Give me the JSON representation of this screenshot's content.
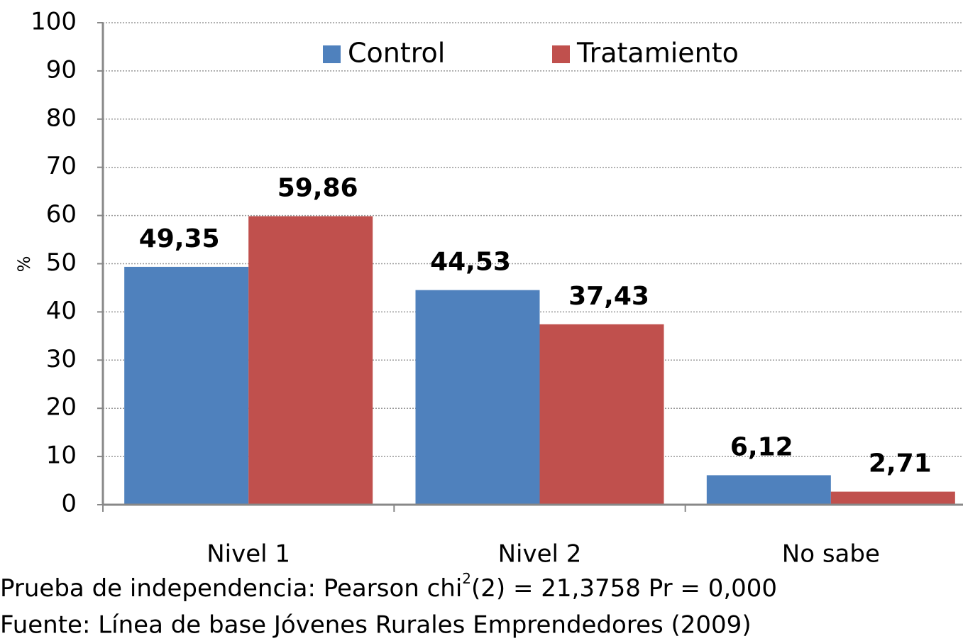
{
  "chart_data": {
    "type": "bar",
    "categories": [
      "Nivel 1",
      "Nivel 2",
      "No sabe"
    ],
    "series": [
      {
        "name": "Control",
        "color": "#4f81bd",
        "values": [
          49.35,
          44.53,
          6.12
        ],
        "value_labels": [
          "49,35",
          "44,53",
          "6,12"
        ]
      },
      {
        "name": "Tratamiento",
        "color": "#c0504d",
        "values": [
          59.86,
          37.43,
          2.71
        ],
        "value_labels": [
          "59,86",
          "37,43",
          "2,71"
        ]
      }
    ],
    "ylabel": "%",
    "ylim": [
      0,
      100
    ],
    "yticks": [
      0,
      10,
      20,
      30,
      40,
      50,
      60,
      70,
      80,
      90,
      100
    ],
    "grid": true,
    "legend": "top",
    "footnote": [
      "Prueba de independencia: Pearson chi",
      "2",
      "(2) =  21,3758   Pr = 0,000"
    ],
    "source": "Fuente: Línea de base Jóvenes Rurales Emprendedores (2009)"
  }
}
